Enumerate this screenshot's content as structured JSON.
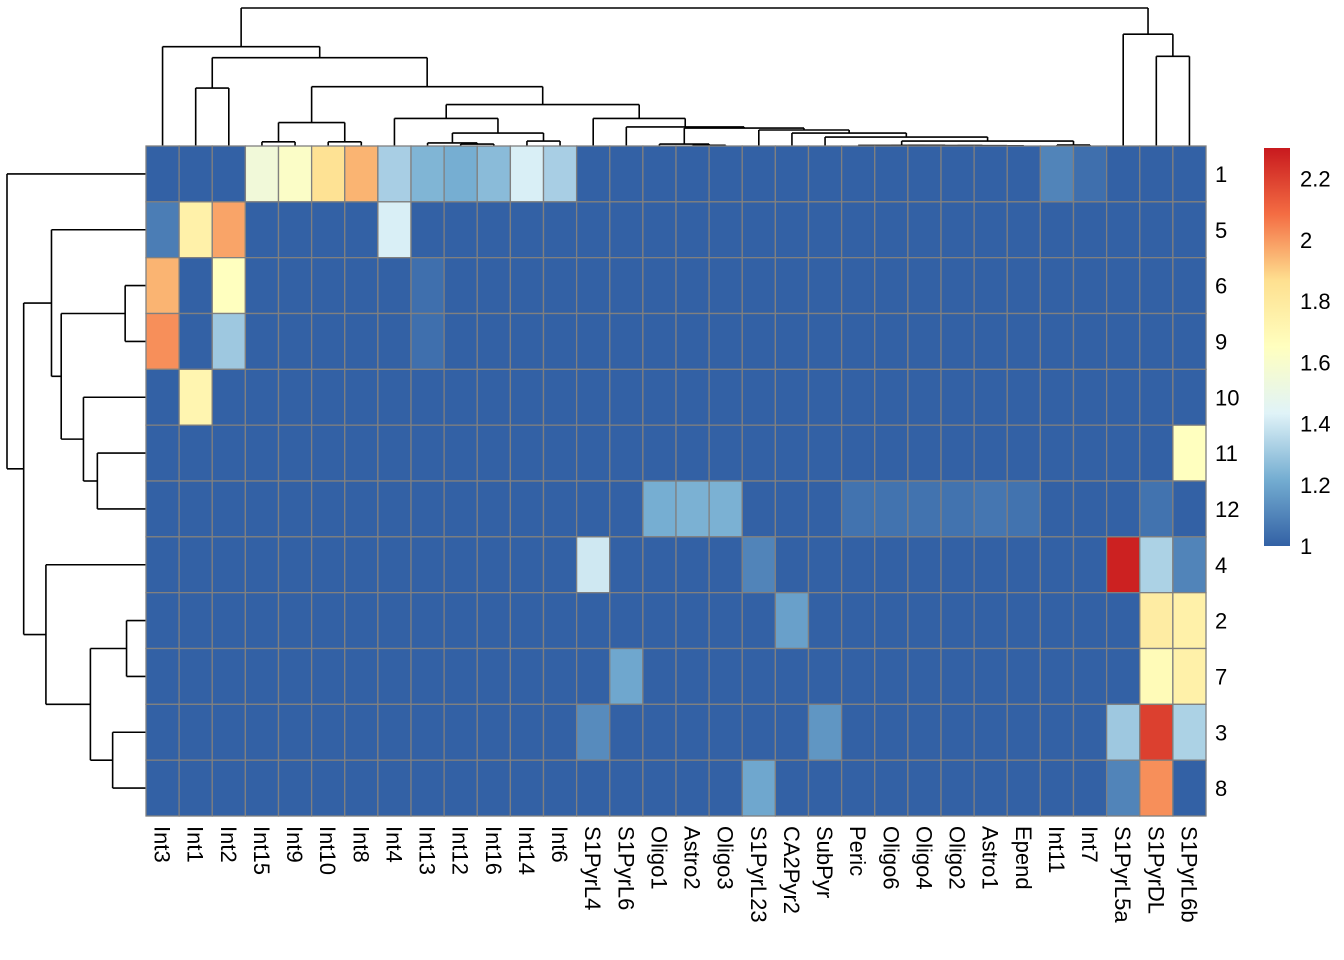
{
  "chart_data": {
    "type": "heatmap",
    "title": "",
    "columns": [
      "Int3",
      "Int1",
      "Int2",
      "Int15",
      "Int9",
      "Int10",
      "Int8",
      "Int4",
      "Int13",
      "Int12",
      "Int16",
      "Int14",
      "Int6",
      "S1PyrL4",
      "S1PyrL6",
      "Oligo1",
      "Astro2",
      "Oligo3",
      "S1PyrL23",
      "CA2Pyr2",
      "SubPyr",
      "Peric",
      "Oligo6",
      "Oligo4",
      "Oligo2",
      "Astro1",
      "Epend",
      "Int11",
      "Int7",
      "S1PyrL5a",
      "S1PyrDL",
      "S1PyrL6b"
    ],
    "rows": [
      "1",
      "5",
      "6",
      "9",
      "10",
      "11",
      "12",
      "4",
      "2",
      "7",
      "3",
      "8"
    ],
    "values": [
      [
        1,
        1,
        1,
        1.55,
        1.62,
        1.85,
        1.95,
        1.32,
        1.24,
        1.22,
        1.26,
        1.42,
        1.32,
        1,
        1,
        1,
        1,
        1,
        1,
        1,
        1,
        1,
        1,
        1,
        1,
        1,
        1,
        1.1,
        1.04,
        1,
        1,
        1
      ],
      [
        1.08,
        1.75,
        1.98,
        1,
        1,
        1,
        1,
        1.42,
        1,
        1,
        1,
        1,
        1,
        1,
        1,
        1,
        1,
        1,
        1,
        1,
        1,
        1,
        1,
        1,
        1,
        1,
        1,
        1,
        1,
        1,
        1,
        1
      ],
      [
        1.95,
        1,
        1.65,
        1,
        1,
        1,
        1,
        1,
        1.04,
        1,
        1,
        1,
        1,
        1,
        1,
        1,
        1,
        1,
        1,
        1,
        1,
        1,
        1,
        1,
        1,
        1,
        1,
        1,
        1,
        1,
        1,
        1
      ],
      [
        2.02,
        1,
        1.3,
        1,
        1,
        1,
        1,
        1,
        1.04,
        1,
        1,
        1,
        1,
        1,
        1,
        1,
        1,
        1,
        1,
        1,
        1,
        1,
        1,
        1,
        1,
        1,
        1,
        1,
        1,
        1,
        1,
        1
      ],
      [
        1,
        1.72,
        1,
        1,
        1,
        1,
        1,
        1,
        1,
        1,
        1,
        1,
        1,
        1,
        1,
        1,
        1,
        1,
        1,
        1,
        1,
        1,
        1,
        1,
        1,
        1,
        1,
        1,
        1,
        1,
        1,
        1
      ],
      [
        1,
        1,
        1,
        1,
        1,
        1,
        1,
        1,
        1,
        1,
        1,
        1,
        1,
        1,
        1,
        1,
        1,
        1,
        1,
        1,
        1,
        1,
        1,
        1,
        1,
        1,
        1,
        1,
        1,
        1,
        1,
        1.65
      ],
      [
        1,
        1,
        1,
        1,
        1,
        1,
        1,
        1,
        1,
        1,
        1,
        1,
        1,
        1,
        1,
        1.22,
        1.23,
        1.23,
        1,
        1,
        1,
        1.05,
        1.05,
        1.05,
        1.05,
        1.06,
        1.05,
        1,
        1,
        1,
        1.05,
        1
      ],
      [
        1,
        1,
        1,
        1,
        1,
        1,
        1,
        1,
        1,
        1,
        1,
        1,
        1,
        1.4,
        1,
        1,
        1,
        1,
        1.1,
        1,
        1,
        1,
        1,
        1,
        1,
        1,
        1,
        1,
        1,
        2.28,
        1.33,
        1.1
      ],
      [
        1,
        1,
        1,
        1,
        1,
        1,
        1,
        1,
        1,
        1,
        1,
        1,
        1,
        1,
        1,
        1,
        1,
        1,
        1,
        1.18,
        1,
        1,
        1,
        1,
        1,
        1,
        1,
        1,
        1,
        1,
        1.78,
        1.75
      ],
      [
        1,
        1,
        1,
        1,
        1,
        1,
        1,
        1,
        1,
        1,
        1,
        1,
        1,
        1,
        1.2,
        1,
        1,
        1,
        1,
        1,
        1,
        1,
        1,
        1,
        1,
        1,
        1,
        1,
        1,
        1,
        1.68,
        1.75
      ],
      [
        1,
        1,
        1,
        1,
        1,
        1,
        1,
        1,
        1,
        1,
        1,
        1,
        1,
        1.12,
        1,
        1,
        1,
        1,
        1,
        1,
        1.15,
        1,
        1,
        1,
        1,
        1,
        1,
        1,
        1,
        1.3,
        2.2,
        1.33
      ],
      [
        1,
        1,
        1,
        1,
        1,
        1,
        1,
        1,
        1,
        1,
        1,
        1,
        1,
        1,
        1,
        1,
        1,
        1,
        1.2,
        1,
        1,
        1,
        1,
        1,
        1,
        1,
        1,
        1,
        1,
        1.1,
        2.02,
        1
      ]
    ],
    "color_range": [
      1,
      2.3
    ],
    "colors": [
      "#3361A5",
      "#74ADD1",
      "#E0F3F8",
      "#FFFFBF",
      "#FEE090",
      "#F46D43",
      "#C8191E"
    ],
    "cell_border_color": "#808080",
    "legend": {
      "placement": "right",
      "ticks": [
        "1",
        "1.2",
        "1.4",
        "1.6",
        "1.8",
        "2",
        "2.2"
      ]
    },
    "column_dendrogram": {
      "h": 1,
      "c": [
        {
          "h": 0.72,
          "c": [
            "Int3",
            {
              "h": 0.64,
              "c": [
                {
                  "h": 0.42,
                  "c": [
                    "Int1",
                    "Int2"
                  ]
                },
                {
                  "h": 0.43,
                  "c": [
                    {
                      "h": 0.17,
                      "c": [
                        {
                          "h": 0.03,
                          "c": [
                            "Int15",
                            "Int9"
                          ]
                        },
                        {
                          "h": 0.03,
                          "c": [
                            "Int10",
                            "Int8"
                          ]
                        }
                      ]
                    },
                    {
                      "h": 0.3,
                      "c": [
                        {
                          "h": 0.2,
                          "c": [
                            "Int4",
                            {
                              "h": 0.094,
                              "c": [
                                {
                                  "h": 0.022,
                                  "c": [
                                    "Int13",
                                    {
                                      "h": 0.014,
                                      "c": [
                                        "Int12",
                                        "Int16"
                                      ]
                                    }
                                  ]
                                },
                                {
                                  "h": 0.036,
                                  "c": [
                                    "Int14",
                                    "Int6"
                                  ]
                                }
                              ]
                            }
                          ]
                        },
                        {
                          "h": 0.2,
                          "c": [
                            "S1PyrL4",
                            {
                              "h": 0.138,
                              "c": [
                                "S1PyrL6",
                                {
                                  "h": 0.13,
                                  "c": [
                                    {
                                      "h": 0.014,
                                      "c": [
                                        "Oligo1",
                                        {
                                          "h": 0.005,
                                          "c": [
                                            "Astro2",
                                            "Oligo3"
                                          ]
                                        }
                                      ]
                                    },
                                    {
                                      "h": 0.116,
                                      "c": [
                                        "S1PyrL23",
                                        {
                                          "h": 0.094,
                                          "c": [
                                            "CA2Pyr2",
                                            {
                                              "h": 0.065,
                                              "c": [
                                                "SubPyr",
                                                {
                                                  "h": 0.036,
                                                  "c": [
                                                    {
                                                      "h": 0.004,
                                                      "c": [
                                                        "Peric",
                                                        {
                                                          "h": 0.003,
                                                          "c": [
                                                            {
                                                              "h": 0.002,
                                                              "c": [
                                                                "Oligo6",
                                                                "Oligo4"
                                                              ]
                                                            },
                                                            {
                                                              "h": 0.002,
                                                              "c": [
                                                                "Oligo2",
                                                                {
                                                                  "h": 0.001,
                                                                  "c": [
                                                                    "Astro1",
                                                                    "Epend"
                                                                  ]
                                                                }
                                                              ]
                                                            }
                                                          ]
                                                        }
                                                      ]
                                                    },
                                                    {
                                                      "h": 0.007,
                                                      "c": [
                                                        "Int11",
                                                        "Int7"
                                                      ]
                                                    }
                                                  ]
                                                }
                                              ]
                                            }
                                          ]
                                        }
                                      ]
                                    }
                                  ]
                                }
                              ]
                            }
                          ]
                        }
                      ]
                    }
                  ]
                }
              ]
            }
          ]
        },
        {
          "h": 0.81,
          "c": [
            "S1PyrL5a",
            {
              "h": 0.65,
              "c": [
                "S1PyrDL",
                "S1PyrL6b"
              ]
            }
          ]
        }
      ]
    },
    "row_dendrogram": {
      "h": 1,
      "c": [
        "1",
        {
          "h": 0.88,
          "c": [
            {
              "h": 0.68,
              "c": [
                "5",
                {
                  "h": 0.61,
                  "c": [
                    {
                      "h": 0.15,
                      "c": [
                        "6",
                        "9"
                      ]
                    },
                    {
                      "h": 0.45,
                      "c": [
                        "10",
                        {
                          "h": 0.35,
                          "c": [
                            "11",
                            "12"
                          ]
                        }
                      ]
                    }
                  ]
                }
              ]
            },
            {
              "h": 0.72,
              "c": [
                "4",
                {
                  "h": 0.4,
                  "c": [
                    {
                      "h": 0.14,
                      "c": [
                        "2",
                        "7"
                      ]
                    },
                    {
                      "h": 0.24,
                      "c": [
                        "3",
                        "8"
                      ]
                    }
                  ]
                }
              ]
            }
          ]
        }
      ]
    }
  }
}
